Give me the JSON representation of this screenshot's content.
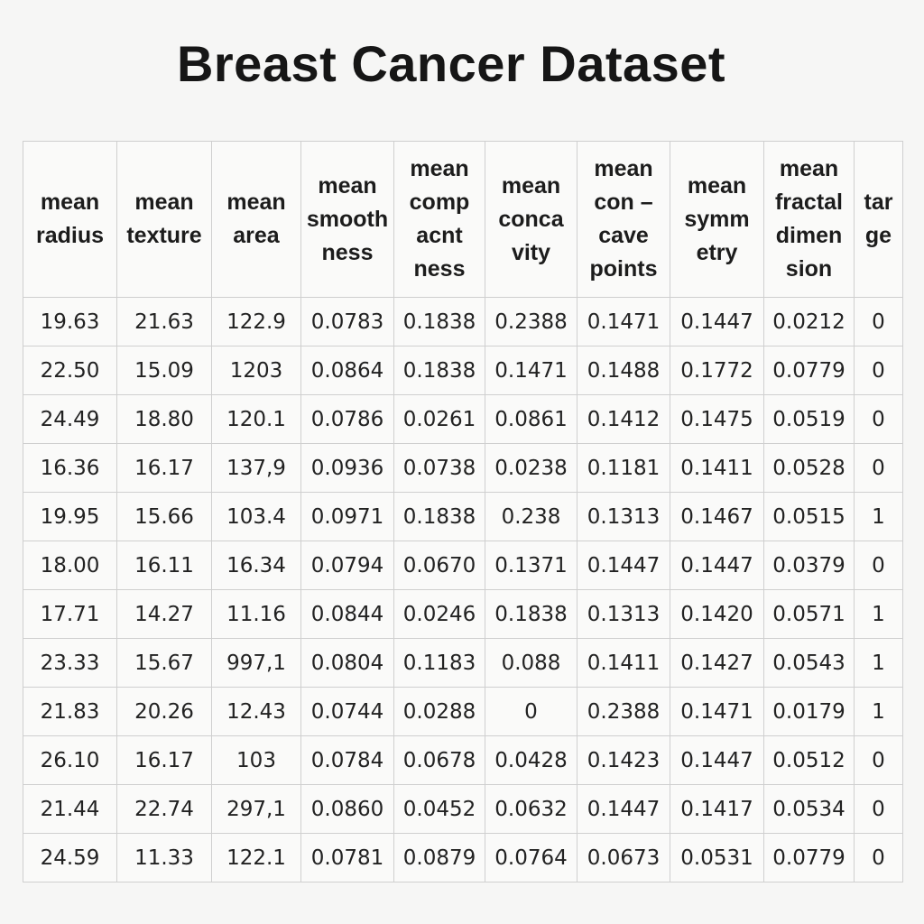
{
  "title": "Breast Cancer Dataset",
  "columns": [
    [
      "mean",
      "radius"
    ],
    [
      "mean",
      "texture"
    ],
    [
      "mean",
      "area"
    ],
    [
      "mean",
      "smooth",
      "ness"
    ],
    [
      "mean",
      "comp",
      "acnt",
      "ness"
    ],
    [
      "mean",
      "conca",
      "vity"
    ],
    [
      "mean",
      "con –",
      "cave",
      "points"
    ],
    [
      "mean",
      "symm",
      "etry"
    ],
    [
      "mean",
      "fractal",
      "dimen",
      "sion"
    ],
    [
      "tar",
      "ge"
    ]
  ],
  "rows": [
    [
      "19.63",
      "21.63",
      "122.9",
      "0.0783",
      "0.1838",
      "0.2388",
      "0.1471",
      "0.1447",
      "0.0212",
      "0"
    ],
    [
      "22.50",
      "15.09",
      "1203",
      "0.0864",
      "0.1838",
      "0.1471",
      "0.1488",
      "0.1772",
      "0.0779",
      "0"
    ],
    [
      "24.49",
      "18.80",
      "120.1",
      "0.0786",
      "0.0261",
      "0.0861",
      "0.1412",
      "0.1475",
      "0.0519",
      "0"
    ],
    [
      "16.36",
      "16.17",
      "137,9",
      "0.0936",
      "0.0738",
      "0.0238",
      "0.1181",
      "0.1411",
      "0.0528",
      "0"
    ],
    [
      "19.95",
      "15.66",
      "103.4",
      "0.0971",
      "0.1838",
      "0.238",
      "0.1313",
      "0.1467",
      "0.0515",
      "1"
    ],
    [
      "18.00",
      "16.11",
      "16.34",
      "0.0794",
      "0.0670",
      "0.1371",
      "0.1447",
      "0.1447",
      "0.0379",
      "0"
    ],
    [
      "17.71",
      "14.27",
      "11.16",
      "0.0844",
      "0.0246",
      "0.1838",
      "0.1313",
      "0.1420",
      "0.0571",
      "1"
    ],
    [
      "23.33",
      "15.67",
      "997,1",
      "0.0804",
      "0.1183",
      "0.088",
      "0.1411",
      "0.1427",
      "0.0543",
      "1"
    ],
    [
      "21.83",
      "20.26",
      "12.43",
      "0.0744",
      "0.0288",
      "0",
      "0.2388",
      "0.1471",
      "0.0179",
      "1"
    ],
    [
      "26.10",
      "16.17",
      "103",
      "0.0784",
      "0.0678",
      "0.0428",
      "0.1423",
      "0.1447",
      "0.0512",
      "0"
    ],
    [
      "21.44",
      "22.74",
      "297,1",
      "0.0860",
      "0.0452",
      "0.0632",
      "0.1447",
      "0.1417",
      "0.0534",
      "0"
    ],
    [
      "24.59",
      "11.33",
      "122.1",
      "0.0781",
      "0.0879",
      "0.0764",
      "0.0673",
      "0.0531",
      "0.0779",
      "0"
    ]
  ]
}
